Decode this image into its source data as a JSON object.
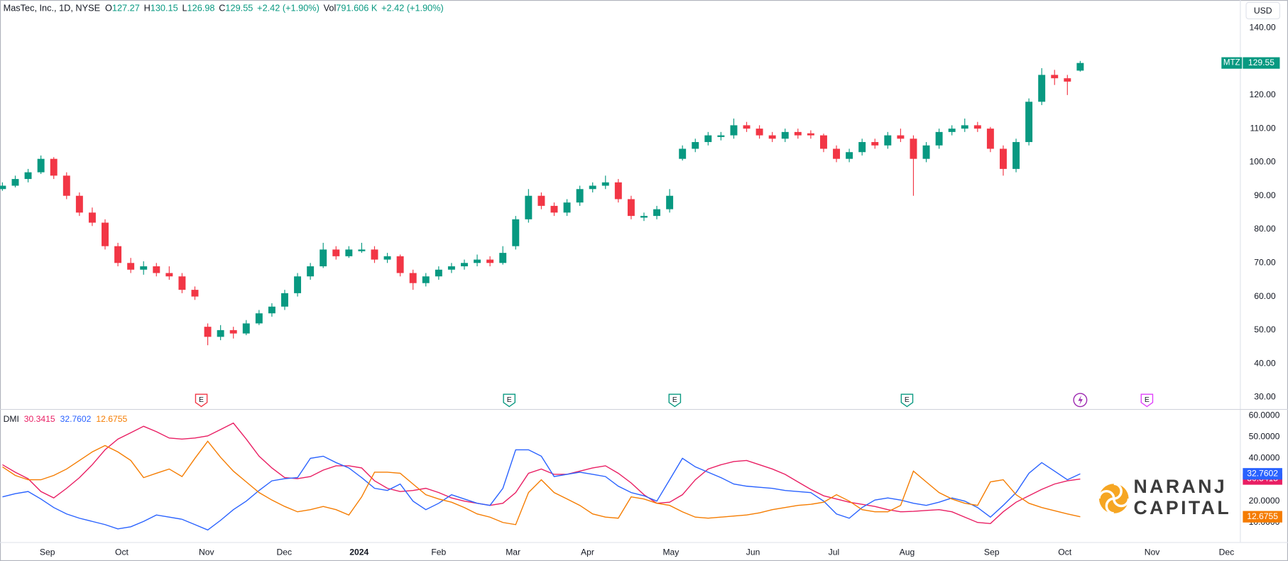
{
  "chart_data": [
    {
      "type": "candlestick",
      "title": "MasTec, Inc., 1D, NYSE",
      "ohlc_labels": [
        "O",
        "H",
        "L",
        "C"
      ],
      "change": "+2.42 (+1.90%)",
      "volume_label": "Vol",
      "volume": "791.606 K",
      "symbol": "MTZ",
      "currency": "USD",
      "up_color": "#089981",
      "down_color": "#f23645",
      "grid": false,
      "xlim": [
        -0.19,
        96.48
      ],
      "xticks": [
        {
          "value": 3.5,
          "label": "Sep"
        },
        {
          "value": 9.3,
          "label": "Oct"
        },
        {
          "value": 15.9,
          "label": "Nov"
        },
        {
          "value": 21.96,
          "label": "Dec"
        },
        {
          "value": 27.8,
          "label": "2024"
        },
        {
          "value": 34,
          "label": "Feb"
        },
        {
          "value": 39.8,
          "label": "Mar"
        },
        {
          "value": 45.6,
          "label": "Apr"
        },
        {
          "value": 52.1,
          "label": "May"
        },
        {
          "value": 58.5,
          "label": "Jun"
        },
        {
          "value": 64.8,
          "label": "Jul"
        },
        {
          "value": 70.5,
          "label": "Aug"
        },
        {
          "value": 77.1,
          "label": "Sep"
        },
        {
          "value": 82.8,
          "label": "Oct"
        },
        {
          "value": 89.6,
          "label": "Nov"
        },
        {
          "value": 95.4,
          "label": "Dec"
        }
      ],
      "ylim": [
        26.5,
        148.3
      ],
      "yticks": [
        {
          "value": 30,
          "label": "30.00"
        },
        {
          "value": 40,
          "label": "40.00"
        },
        {
          "value": 50,
          "label": "50.00"
        },
        {
          "value": 60,
          "label": "60.00"
        },
        {
          "value": 70,
          "label": "70.00"
        },
        {
          "value": 80,
          "label": "80.00"
        },
        {
          "value": 90,
          "label": "90.00"
        },
        {
          "value": 100,
          "label": "100.00"
        },
        {
          "value": 110,
          "label": "110.00"
        },
        {
          "value": 120,
          "label": "120.00"
        },
        {
          "value": 130,
          "label": "130.00"
        },
        {
          "value": 140,
          "label": "140.00"
        }
      ],
      "events": [
        {
          "x": 15.5,
          "label": "E",
          "color": "#f23645"
        },
        {
          "x": 39.5,
          "label": "E",
          "color": "#089981"
        },
        {
          "x": 52.4,
          "label": "E",
          "color": "#089981"
        },
        {
          "x": 70.5,
          "label": "E",
          "color": "#089981"
        },
        {
          "x": 84,
          "color": "#9c27b0"
        },
        {
          "x": 89.2,
          "label": "E",
          "color": "#e040fb"
        }
      ],
      "ohlc": [
        [
          92,
          94,
          91.5,
          93
        ],
        [
          93,
          96,
          92.5,
          95
        ],
        [
          95,
          98,
          94,
          97
        ],
        [
          97,
          102,
          96.5,
          101
        ],
        [
          101,
          101.5,
          95,
          96
        ],
        [
          96,
          97,
          89,
          90
        ],
        [
          90,
          91,
          84,
          85
        ],
        [
          85,
          86.5,
          81,
          82
        ],
        [
          82,
          83,
          74,
          75
        ],
        [
          75,
          76,
          69,
          70
        ],
        [
          70,
          71.5,
          67,
          68
        ],
        [
          68,
          70.5,
          66.5,
          69
        ],
        [
          69,
          70,
          66,
          67
        ],
        [
          67,
          69,
          65,
          66
        ],
        [
          66,
          67,
          61,
          62
        ],
        [
          62,
          63,
          59,
          60
        ],
        [
          51,
          52,
          45.5,
          48
        ],
        [
          48,
          51.5,
          47,
          50
        ],
        [
          50,
          51,
          47.5,
          49
        ],
        [
          49,
          53,
          48.5,
          52
        ],
        [
          52,
          56,
          51.5,
          55
        ],
        [
          55,
          58,
          54,
          57
        ],
        [
          57,
          62,
          56,
          61
        ],
        [
          61,
          67,
          60,
          66
        ],
        [
          66,
          70,
          65,
          69
        ],
        [
          69,
          76,
          68.5,
          74
        ],
        [
          74,
          75,
          71,
          72
        ],
        [
          72,
          75,
          71.5,
          74
        ],
        [
          73.5,
          76,
          73,
          74
        ],
        [
          74,
          75,
          70,
          71
        ],
        [
          71,
          73,
          70,
          72
        ],
        [
          72,
          72.5,
          66,
          67
        ],
        [
          67,
          68,
          62,
          64
        ],
        [
          64,
          67,
          63,
          66
        ],
        [
          66,
          69,
          65,
          68
        ],
        [
          68,
          70,
          67,
          69
        ],
        [
          69,
          71,
          68,
          70
        ],
        [
          70,
          72.5,
          69,
          71
        ],
        [
          71,
          72,
          69,
          70
        ],
        [
          70,
          75,
          69.5,
          73
        ],
        [
          75,
          84,
          74,
          83
        ],
        [
          83,
          92,
          82,
          90
        ],
        [
          90,
          91,
          86,
          87
        ],
        [
          87,
          88,
          84,
          85
        ],
        [
          85,
          89,
          84,
          88
        ],
        [
          88,
          93,
          87,
          92
        ],
        [
          92,
          94,
          91,
          93
        ],
        [
          93,
          96,
          92,
          94
        ],
        [
          94,
          95,
          88,
          89
        ],
        [
          89,
          90,
          83,
          84
        ],
        [
          83.5,
          85,
          82.5,
          84
        ],
        [
          84,
          87,
          83,
          86
        ],
        [
          86,
          92,
          85,
          90
        ],
        [
          101,
          105,
          100.5,
          104
        ],
        [
          104,
          107,
          103,
          106
        ],
        [
          106,
          109,
          105,
          108
        ],
        [
          107.5,
          109,
          106.5,
          108
        ],
        [
          108,
          113,
          107,
          111
        ],
        [
          111,
          112,
          109,
          110
        ],
        [
          110,
          111,
          107,
          108
        ],
        [
          108,
          109,
          106,
          107
        ],
        [
          107,
          110,
          106,
          109
        ],
        [
          109,
          110,
          107,
          108
        ],
        [
          108.6,
          109.5,
          107,
          108
        ],
        [
          108,
          108.5,
          103,
          104
        ],
        [
          104,
          105,
          100,
          101
        ],
        [
          101,
          104,
          100,
          103
        ],
        [
          103,
          107,
          102,
          106
        ],
        [
          106,
          107,
          104,
          105
        ],
        [
          105,
          109,
          104,
          108
        ],
        [
          108,
          110,
          106,
          107
        ],
        [
          107,
          108,
          90,
          101
        ],
        [
          101,
          106,
          100,
          105
        ],
        [
          105,
          110,
          104,
          109
        ],
        [
          109,
          111,
          108,
          110
        ],
        [
          110,
          113,
          109,
          111
        ],
        [
          111,
          112,
          109,
          110
        ],
        [
          110,
          110.5,
          103,
          104
        ],
        [
          104,
          105,
          96,
          98
        ],
        [
          98,
          107,
          97,
          106
        ],
        [
          106,
          119,
          105,
          118
        ],
        [
          118,
          128,
          117,
          126
        ],
        [
          126,
          127.5,
          123,
          125
        ],
        [
          125,
          126,
          120,
          124
        ],
        [
          127.27,
          130.15,
          126.98,
          129.55
        ]
      ]
    },
    {
      "type": "line",
      "title": "DMI",
      "ylim": [
        0.8,
        62.7
      ],
      "yticks": [
        {
          "value": 10,
          "label": "10.0000"
        },
        {
          "value": 20,
          "label": "20.0000"
        },
        {
          "value": 30,
          "label": "30.0000"
        },
        {
          "value": 40,
          "label": "40.0000"
        },
        {
          "value": 50,
          "label": "50.0000"
        },
        {
          "value": 60,
          "label": "60.0000"
        }
      ],
      "series": [
        {
          "color": "#e91e63",
          "values": [
            37,
            33.5,
            30.5,
            24.5,
            21.5,
            26,
            31,
            37,
            44,
            49,
            52,
            55,
            52.5,
            49.5,
            49,
            49.5,
            50.5,
            53.5,
            56.5,
            49,
            41,
            35.5,
            31,
            30.5,
            31.5,
            34.5,
            36.5,
            36.5,
            35.5,
            29.5,
            26,
            24.5,
            25,
            26,
            24,
            21.5,
            20,
            19,
            18,
            19,
            24,
            33,
            35,
            32.5,
            32.5,
            34,
            35.5,
            36.5,
            33,
            28.5,
            23,
            19,
            19.5,
            23,
            30,
            35,
            37,
            38.5,
            39,
            37,
            35,
            32.5,
            29,
            25.5,
            22.5,
            21,
            19.5,
            18.5,
            17.5,
            16,
            15,
            15.2,
            15.6,
            16,
            15,
            12.5,
            10,
            9.5,
            15,
            19.5,
            22.5,
            25.5,
            28,
            29.5,
            30.3415
          ]
        },
        {
          "color": "#2962ff",
          "values": [
            22,
            23.5,
            24.5,
            21,
            17,
            14,
            12,
            10.5,
            9,
            7,
            8,
            10.5,
            13.5,
            12.5,
            11.5,
            9,
            6.5,
            11,
            16,
            20,
            25,
            29.5,
            30.5,
            31,
            40,
            41,
            38,
            35.5,
            31,
            26,
            25,
            28,
            20,
            16,
            19,
            23,
            21,
            19,
            18,
            26,
            44,
            44,
            41,
            31.5,
            32.5,
            33.5,
            32.5,
            31.5,
            27,
            24,
            22.5,
            20,
            30,
            40,
            36,
            33.5,
            31,
            28,
            27,
            26.5,
            26,
            25,
            24.5,
            24,
            20,
            14,
            12,
            17,
            20.5,
            21.5,
            20.5,
            19,
            18,
            19.5,
            21.5,
            20,
            17,
            12.5,
            18,
            24,
            33,
            38,
            34,
            30,
            32.7602
          ]
        },
        {
          "color": "#f57c00",
          "values": [
            36,
            32,
            30,
            30,
            32,
            35,
            39,
            43,
            46,
            43,
            39,
            31,
            33,
            35,
            31.5,
            40,
            48,
            40.5,
            34,
            29,
            24,
            20.5,
            17.5,
            15,
            16,
            17.5,
            16,
            13.5,
            22,
            33.5,
            33.5,
            33,
            28,
            23,
            21,
            19.5,
            17,
            14,
            12.5,
            10,
            9,
            24,
            30,
            24,
            21,
            18,
            14,
            12.5,
            12,
            22,
            21,
            19,
            18,
            15,
            12.5,
            12,
            12.5,
            13,
            13.5,
            14.5,
            16,
            17,
            18,
            18.5,
            19.5,
            23,
            20,
            16,
            15,
            15,
            18,
            34,
            29,
            24,
            21,
            19,
            18,
            29,
            30,
            23,
            19,
            17,
            15.5,
            14,
            12.6755
          ]
        }
      ]
    }
  ],
  "watermark": [
    "NARANJ",
    "CAPITAL"
  ]
}
